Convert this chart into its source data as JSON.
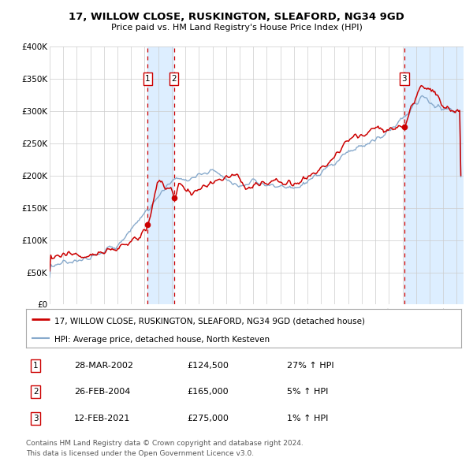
{
  "title1": "17, WILLOW CLOSE, RUSKINGTON, SLEAFORD, NG34 9GD",
  "title2": "Price paid vs. HM Land Registry's House Price Index (HPI)",
  "legend_line1": "17, WILLOW CLOSE, RUSKINGTON, SLEAFORD, NG34 9GD (detached house)",
  "legend_line2": "HPI: Average price, detached house, North Kesteven",
  "footer1": "Contains HM Land Registry data © Crown copyright and database right 2024.",
  "footer2": "This data is licensed under the Open Government Licence v3.0.",
  "transactions": [
    {
      "num": 1,
      "date": "28-MAR-2002",
      "price": 124500,
      "pct": "27%",
      "dir": "↑",
      "x_year": 2002.23
    },
    {
      "num": 2,
      "date": "26-FEB-2004",
      "price": 165000,
      "pct": "5%",
      "dir": "↑",
      "x_year": 2004.15
    },
    {
      "num": 3,
      "date": "12-FEB-2021",
      "price": 275000,
      "pct": "1%",
      "dir": "↑",
      "x_year": 2021.12
    }
  ],
  "xmin": 1995.0,
  "xmax": 2025.5,
  "ymin": 0,
  "ymax": 400000,
  "yticks": [
    0,
    50000,
    100000,
    150000,
    200000,
    250000,
    300000,
    350000,
    400000
  ],
  "ytick_labels": [
    "£0",
    "£50K",
    "£100K",
    "£150K",
    "£200K",
    "£250K",
    "£300K",
    "£350K",
    "£400K"
  ],
  "xticks": [
    1995,
    1996,
    1997,
    1998,
    1999,
    2000,
    2001,
    2002,
    2003,
    2004,
    2005,
    2006,
    2007,
    2008,
    2009,
    2010,
    2011,
    2012,
    2013,
    2014,
    2015,
    2016,
    2017,
    2018,
    2019,
    2020,
    2021,
    2022,
    2023,
    2024,
    2025
  ],
  "red_line_color": "#cc0000",
  "blue_line_color": "#88aacc",
  "dot_color": "#cc0000",
  "shade_color": "#ddeeff",
  "grid_color": "#cccccc",
  "bg_color": "#ffffff",
  "box_color": "#cc0000",
  "fig_width": 6.0,
  "fig_height": 5.9
}
